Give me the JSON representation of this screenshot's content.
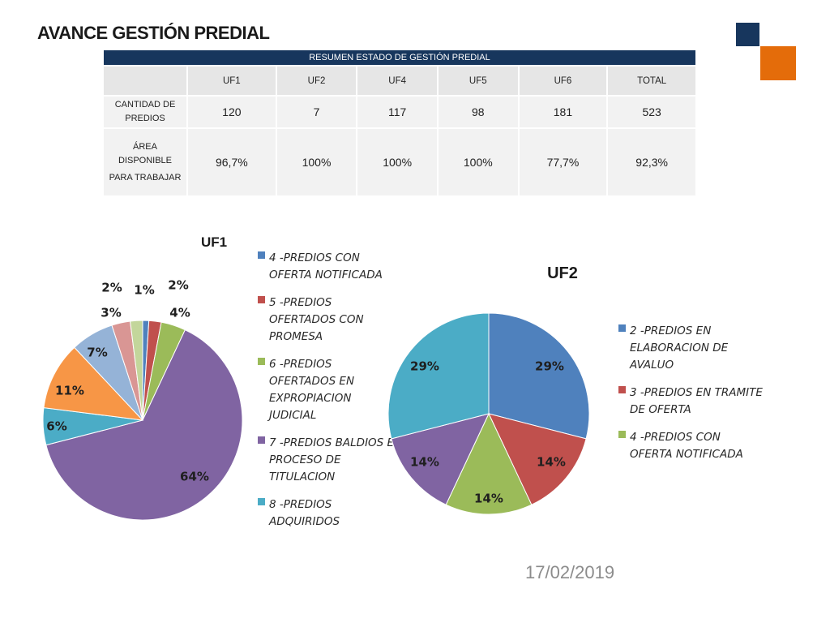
{
  "page": {
    "title": "AVANCE GESTIÓN PREDIAL",
    "date": "17/02/2019"
  },
  "table": {
    "header": "RESUMEN ESTADO DE GESTIÓN PREDIAL",
    "columns": [
      "",
      "UF1",
      "UF2",
      "UF4",
      "UF5",
      "UF6",
      "TOTAL"
    ],
    "rows": [
      {
        "label_lines": [
          "CANTIDAD DE",
          "PREDIOS"
        ],
        "values": [
          "120",
          "7",
          "117",
          "98",
          "181",
          "523"
        ]
      },
      {
        "label_lines": [
          "ÁREA",
          "DISPONIBLE",
          "PARA TRABAJAR"
        ],
        "values": [
          "96,7%",
          "100%",
          "100%",
          "100%",
          "77,7%",
          "92,3%"
        ]
      }
    ]
  },
  "chart_data": [
    {
      "type": "pie",
      "title": "UF1",
      "slices": [
        {
          "label": "4 -PREDIOS CON OFERTA NOTIFICADA",
          "value": 1,
          "display": "1%",
          "color": "#4f81bd"
        },
        {
          "label": "5 -PREDIOS OFERTADOS CON PROMESA",
          "value": 2,
          "display": "2%",
          "color": "#c0504d"
        },
        {
          "label": "6 -PREDIOS OFERTADOS EN EXPROPIACION JUDICIAL",
          "value": 4,
          "display": "4%",
          "color": "#9bbb59"
        },
        {
          "label": "7 -PREDIOS BALDIOS EN PROCESO DE TITULACION",
          "value": 64,
          "display": "64%",
          "color": "#8064a2"
        },
        {
          "label": "8 -PREDIOS ADQUIRIDOS",
          "value": 6,
          "display": "6%",
          "color": "#4bacc6"
        },
        {
          "label": "",
          "value": 11,
          "display": "11%",
          "color": "#f79646"
        },
        {
          "label": "",
          "value": 7,
          "display": "7%",
          "color": "#95b3d7"
        },
        {
          "label": "",
          "value": 3,
          "display": "3%",
          "color": "#d99694"
        },
        {
          "label": "",
          "value": 2,
          "display": "2%",
          "color": "#c3d69b"
        }
      ],
      "legend": [
        {
          "lines": [
            "4 -PREDIOS CON",
            "OFERTA NOTIFICADA"
          ],
          "color": "#4f81bd"
        },
        {
          "lines": [
            "5 -PREDIOS",
            "OFERTADOS CON",
            "PROMESA"
          ],
          "color": "#c0504d"
        },
        {
          "lines": [
            "6 -PREDIOS",
            "OFERTADOS EN",
            "EXPROPIACION",
            "JUDICIAL"
          ],
          "color": "#9bbb59"
        },
        {
          "lines": [
            "7 -PREDIOS BALDIOS EN",
            "PROCESO DE",
            "TITULACION"
          ],
          "color": "#8064a2"
        },
        {
          "lines": [
            "8 -PREDIOS",
            "ADQUIRIDOS"
          ],
          "color": "#4bacc6"
        }
      ],
      "legend_placement": "right"
    },
    {
      "type": "pie",
      "title": "UF2",
      "slices": [
        {
          "label": "2 -PREDIOS EN ELABORACION DE AVALUO",
          "value": 29,
          "display": "29%",
          "color": "#4f81bd"
        },
        {
          "label": "3 -PREDIOS EN TRAMITE DE OFERTA",
          "value": 14,
          "display": "14%",
          "color": "#c0504d"
        },
        {
          "label": "4 -PREDIOS CON OFERTA NOTIFICADA",
          "value": 14,
          "display": "14%",
          "color": "#9bbb59"
        },
        {
          "label": "",
          "value": 14,
          "display": "14%",
          "color": "#8064a2"
        },
        {
          "label": "",
          "value": 29,
          "display": "29%",
          "color": "#4bacc6"
        }
      ],
      "legend": [
        {
          "lines": [
            "2 -PREDIOS EN",
            "ELABORACION DE",
            "AVALUO"
          ],
          "color": "#4f81bd"
        },
        {
          "lines": [
            "3 -PREDIOS EN TRAMITE",
            "DE OFERTA"
          ],
          "color": "#c0504d"
        },
        {
          "lines": [
            "4 -PREDIOS CON",
            "OFERTA NOTIFICADA"
          ],
          "color": "#9bbb59"
        }
      ],
      "legend_placement": "right"
    }
  ]
}
